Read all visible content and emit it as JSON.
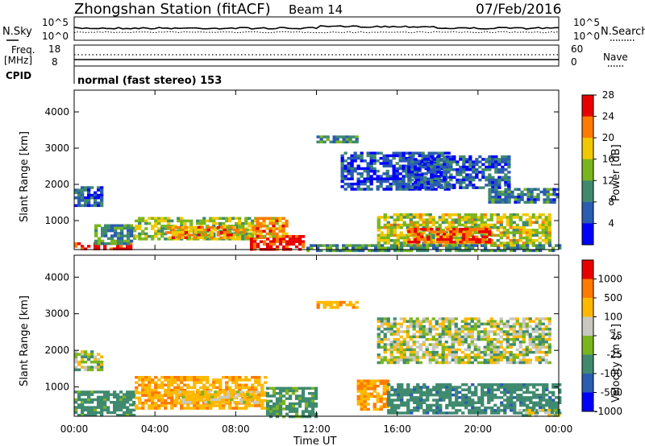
{
  "header": {
    "title": "Zhongshan Station (fitACF)",
    "beam": "Beam 14",
    "date": "07/Feb/2016"
  },
  "panels": {
    "nsky": {
      "label": "N.Sky",
      "left_ticks": [
        "10^5",
        "10^0"
      ],
      "right_ticks": [
        "10^5",
        "10^0"
      ],
      "right_label": "N.Search"
    },
    "freq": {
      "label_line1": "Freq.",
      "label_line2": "[MHz]",
      "left_ticks": [
        "18",
        "8"
      ],
      "right_ticks": [
        "60",
        "0"
      ],
      "right_label": "Nave"
    },
    "cpid": {
      "label": "CPID",
      "text": "normal (fast stereo) 153"
    }
  },
  "chart_data": [
    {
      "type": "heatmap",
      "title": "",
      "quantity": "Power",
      "xlabel": "Time UT",
      "ylabel": "Slant Range [km]",
      "x_ticks": [
        "00:00",
        "04:00",
        "08:00",
        "12:00",
        "16:00",
        "20:00",
        "00:00"
      ],
      "y_ticks": [
        1000,
        2000,
        3000,
        4000
      ],
      "ylim": [
        200,
        4600
      ],
      "xlim_hours": [
        0,
        24
      ],
      "colorbar": {
        "label": "Power [dB]",
        "ticks": [
          4,
          8,
          12,
          16,
          20,
          24,
          28
        ],
        "colors": [
          "#0000ff",
          "#2a5cb0",
          "#3f8a6f",
          "#7ab51f",
          "#f0c800",
          "#ff7a00",
          "#e80000"
        ]
      },
      "regions": [
        {
          "t": [
            0.0,
            1.3
          ],
          "r": [
            1450,
            1950
          ],
          "value": 8
        },
        {
          "t": [
            0.0,
            2.8
          ],
          "r": [
            250,
            400
          ],
          "value": 28
        },
        {
          "t": [
            1.0,
            3.0
          ],
          "r": [
            400,
            900
          ],
          "value": 12
        },
        {
          "t": [
            3.0,
            9.0
          ],
          "r": [
            500,
            1100
          ],
          "value": 16
        },
        {
          "t": [
            4.5,
            9.3
          ],
          "r": [
            550,
            850
          ],
          "value": 22
        },
        {
          "t": [
            8.7,
            11.3
          ],
          "r": [
            200,
            600
          ],
          "value": 28
        },
        {
          "t": [
            9.0,
            10.5
          ],
          "r": [
            600,
            1100
          ],
          "value": 22
        },
        {
          "t": [
            12.0,
            14.0
          ],
          "r": [
            3150,
            3350
          ],
          "value": 12
        },
        {
          "t": [
            13.2,
            18.5
          ],
          "r": [
            1900,
            2900
          ],
          "value": 7
        },
        {
          "t": [
            16.5,
            21.5
          ],
          "r": [
            1900,
            2800
          ],
          "value": 8
        },
        {
          "t": [
            20.5,
            24.0
          ],
          "r": [
            1500,
            1900
          ],
          "value": 10
        },
        {
          "t": [
            15.0,
            23.5
          ],
          "r": [
            300,
            1200
          ],
          "value": 18
        },
        {
          "t": [
            16.5,
            20.5
          ],
          "r": [
            400,
            800
          ],
          "value": 26
        },
        {
          "t": [
            11.5,
            24.0
          ],
          "r": [
            200,
            350
          ],
          "value": 12
        }
      ]
    },
    {
      "type": "heatmap",
      "title": "",
      "quantity": "Velocity",
      "xlabel": "Time UT",
      "ylabel": "Slant Range [km]",
      "x_ticks": [
        "00:00",
        "04:00",
        "08:00",
        "12:00",
        "16:00",
        "20:00",
        "00:00"
      ],
      "y_ticks": [
        1000,
        2000,
        3000,
        4000
      ],
      "ylim": [
        200,
        4600
      ],
      "xlim_hours": [
        0,
        24
      ],
      "colorbar": {
        "label": "Velocity [m s^-1]",
        "ticks": [
          "1000",
          "500",
          "100",
          "25",
          "-25",
          "-100",
          "-500",
          "-1000"
        ],
        "colors": [
          "#0000ff",
          "#2a5cb0",
          "#3f8a6f",
          "#7ab51f",
          "#c8c8c0",
          "#ffb800",
          "#ff7a00",
          "#e80000"
        ]
      },
      "regions": [
        {
          "t": [
            0.0,
            1.3
          ],
          "r": [
            1500,
            2000
          ],
          "value": 0
        },
        {
          "t": [
            0.0,
            3.0
          ],
          "r": [
            250,
            900
          ],
          "value": 150
        },
        {
          "t": [
            3.0,
            9.5
          ],
          "r": [
            450,
            1300
          ],
          "value": -250
        },
        {
          "t": [
            5.0,
            9.0
          ],
          "r": [
            550,
            900
          ],
          "value": -80
        },
        {
          "t": [
            9.5,
            12.0
          ],
          "r": [
            200,
            1000
          ],
          "value": 120
        },
        {
          "t": [
            12.0,
            14.0
          ],
          "r": [
            3150,
            3350
          ],
          "value": -250
        },
        {
          "t": [
            14.0,
            15.5
          ],
          "r": [
            400,
            1200
          ],
          "value": -300
        },
        {
          "t": [
            15.0,
            23.5
          ],
          "r": [
            1700,
            2900
          ],
          "value": 0
        },
        {
          "t": [
            15.5,
            24.0
          ],
          "r": [
            300,
            1100
          ],
          "value": 200
        },
        {
          "t": [
            22.0,
            24.0
          ],
          "r": [
            200,
            400
          ],
          "value": 0
        }
      ]
    }
  ],
  "axes_labels": {
    "ylabel": "Slant Range [km]",
    "xlabel": "Time UT",
    "power_bar_label": "Power [dB]",
    "velocity_bar_label": "Velocity [m s",
    "velocity_bar_sup": "-1",
    "velocity_bar_end": "]"
  }
}
